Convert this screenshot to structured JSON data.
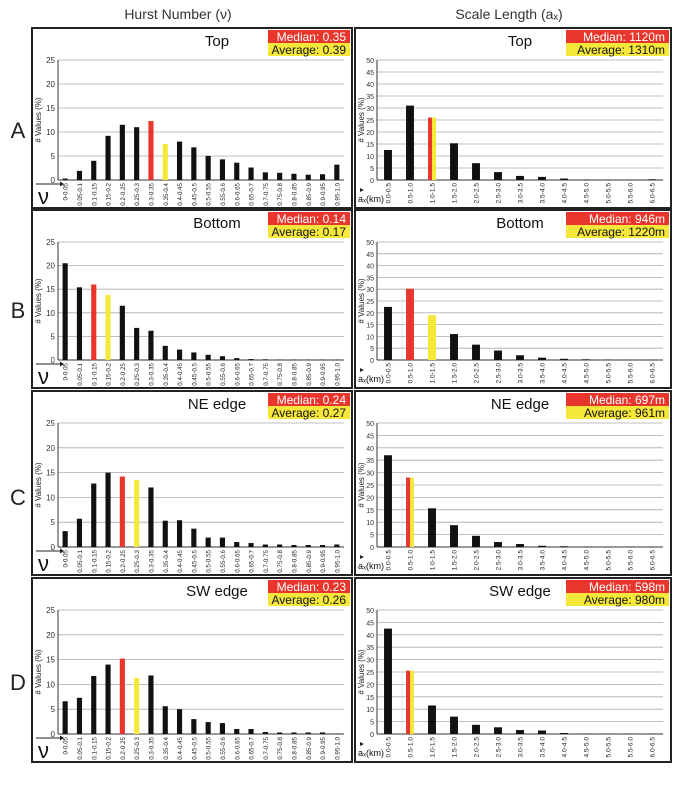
{
  "figure": {
    "column_titles": [
      "Hurst Number (ν)",
      "Scale Length (aₓ)"
    ],
    "row_labels": [
      "A",
      "B",
      "C",
      "D"
    ],
    "colors": {
      "median": "#e8362c",
      "average": "#f5e83a",
      "bar": "#111111",
      "grid": "#aaaaaa"
    },
    "hurst_x_symbol": "ν",
    "scale_x_symbol": "aₓ(km)"
  },
  "chart_data": [
    {
      "type": "bar",
      "title": "Top",
      "ylabel": "# Values (%)",
      "ylim": [
        0,
        25
      ],
      "yticks": [
        0,
        5,
        10,
        15,
        20,
        25
      ],
      "grid": true,
      "median_label": "Median: 0.35",
      "average_label": "Average: 0.39",
      "categories": [
        "0-0.05",
        "0.05-0.1",
        "0.1-0.15",
        "0.15-0.2",
        "0.2-0.25",
        "0.25-0.3",
        "0.3-0.35",
        "0.35-0.4",
        "0.4-0.45",
        "0.45-0.5",
        "0.5-0.55",
        "0.55-0.6",
        "0.6-0.65",
        "0.65-0.7",
        "0.7-0.75",
        "0.75-0.8",
        "0.8-0.85",
        "0.85-0.9",
        "0.9-0.95",
        "0.95-1.0"
      ],
      "values": [
        0.3,
        1.9,
        4.0,
        9.2,
        11.5,
        11.0,
        12.3,
        7.5,
        8.0,
        6.8,
        5.0,
        4.3,
        3.6,
        2.6,
        1.6,
        1.5,
        1.3,
        1.1,
        1.2,
        3.2
      ],
      "median_index": 6,
      "average_index": 7,
      "split_index": -1
    },
    {
      "type": "bar",
      "title": "Top",
      "ylabel": "# Values (%)",
      "ylim": [
        0,
        50
      ],
      "yticks": [
        0,
        5,
        10,
        15,
        20,
        25,
        30,
        35,
        40,
        45,
        50
      ],
      "grid": true,
      "median_label": "Median: 1120m",
      "average_label": "Average: 1310m",
      "categories": [
        "0.0-0.5",
        "0.5-1.0",
        "1.0-1.5",
        "1.5-2.0",
        "2.0-2.5",
        "2.5-3.0",
        "3.0-3.5",
        "3.5-4.0",
        "4.0-4.5",
        "4.5-5.0",
        "5.0-5.5",
        "5.5-6.0",
        "6.0-6.5"
      ],
      "values": [
        12.5,
        31.0,
        26.0,
        15.3,
        7.0,
        3.3,
        1.7,
        1.3,
        0.6,
        0.2,
        0.1,
        0.1,
        0.3
      ],
      "median_index": -1,
      "average_index": -1,
      "split_index": 2
    },
    {
      "type": "bar",
      "title": "Bottom",
      "ylabel": "# Values (%)",
      "ylim": [
        0,
        25
      ],
      "yticks": [
        0,
        5,
        10,
        15,
        20,
        25
      ],
      "grid": true,
      "median_label": "Median: 0.14",
      "average_label": "Average: 0.17",
      "categories": [
        "0-0.05",
        "0.05-0.1",
        "0.1-0.15",
        "0.15-0.2",
        "0.2-0.25",
        "0.25-0.3",
        "0.3-0.35",
        "0.35-0.4",
        "0.4-0.45",
        "0.45-0.5",
        "0.5-0.55",
        "0.55-0.6",
        "0.6-0.65",
        "0.65-0.7",
        "0.7-0.75",
        "0.75-0.8",
        "0.8-0.85",
        "0.85-0.9",
        "0.9-0.95",
        "0.95-1.0"
      ],
      "values": [
        20.5,
        15.4,
        16.0,
        13.8,
        11.5,
        6.8,
        6.2,
        3.0,
        2.2,
        1.6,
        1.1,
        0.8,
        0.4,
        0.2,
        0.15,
        0.1,
        0.1,
        0.1,
        0.1,
        0.1
      ],
      "median_index": 2,
      "average_index": 3,
      "split_index": -1
    },
    {
      "type": "bar",
      "title": "Bottom",
      "ylabel": "# Values (%)",
      "ylim": [
        0,
        50
      ],
      "yticks": [
        0,
        5,
        10,
        15,
        20,
        25,
        30,
        35,
        40,
        45,
        50
      ],
      "grid": true,
      "median_label": "Median: 946m",
      "average_label": "Average: 1220m",
      "categories": [
        "0.0-0.5",
        "0.5-1.0",
        "1.0-1.5",
        "1.5-2.0",
        "2.0-2.5",
        "2.5-3.0",
        "3.0-3.5",
        "3.5-4.0",
        "4.0-4.5",
        "4.5-5.0",
        "5.0-5.5",
        "5.5-6.0",
        "6.0-6.5"
      ],
      "values": [
        22.5,
        30.2,
        19.0,
        11.0,
        6.5,
        4.0,
        2.0,
        1.0,
        0.5,
        0.3,
        0.2,
        0.1,
        0.1
      ],
      "median_index": 1,
      "average_index": 2,
      "split_index": -1
    },
    {
      "type": "bar",
      "title": "NE edge",
      "ylabel": "# Values (%)",
      "ylim": [
        0,
        25
      ],
      "yticks": [
        0,
        5,
        10,
        15,
        20,
        25
      ],
      "grid": true,
      "median_label": "Median: 0.24",
      "average_label": "Average: 0.27",
      "categories": [
        "0-0.05",
        "0.05-0.1",
        "0.1-0.15",
        "0.15-0.2",
        "0.2-0.25",
        "0.25-0.3",
        "0.3-0.35",
        "0.35-0.4",
        "0.4-0.45",
        "0.45-0.5",
        "0.5-0.55",
        "0.55-0.6",
        "0.6-0.65",
        "0.65-0.7",
        "0.7-0.75",
        "0.75-0.8",
        "0.8-0.85",
        "0.85-0.9",
        "0.9-0.95",
        "0.95-1.0"
      ],
      "values": [
        3.2,
        5.7,
        12.8,
        15.0,
        14.2,
        13.5,
        12.0,
        5.3,
        5.4,
        3.7,
        1.9,
        1.9,
        1.0,
        0.8,
        0.5,
        0.5,
        0.4,
        0.4,
        0.4,
        0.5
      ],
      "median_index": 4,
      "average_index": 5,
      "split_index": -1
    },
    {
      "type": "bar",
      "title": "NE edge",
      "ylabel": "# Values (%)",
      "ylim": [
        0,
        50
      ],
      "yticks": [
        0,
        5,
        10,
        15,
        20,
        25,
        30,
        35,
        40,
        45,
        50
      ],
      "grid": true,
      "median_label": "Median: 697m",
      "average_label": "Average: 961m",
      "categories": [
        "0.0-0.5",
        "0.5-1.0",
        "1.0-1.5",
        "1.5-2.0",
        "2.0-2.5",
        "2.5-3.0",
        "3.0-3.5",
        "3.5-4.0",
        "4.0-4.5",
        "4.5-5.0",
        "5.0-5.5",
        "5.5-6.0",
        "6.0-6.5"
      ],
      "values": [
        37.0,
        28.0,
        15.6,
        8.8,
        4.5,
        2.0,
        1.2,
        0.5,
        0.3,
        0.1,
        0.1,
        0.1,
        0.1
      ],
      "median_index": -1,
      "average_index": -1,
      "split_index": 1
    },
    {
      "type": "bar",
      "title": "SW edge",
      "ylabel": "# Values (%)",
      "ylim": [
        0,
        25
      ],
      "yticks": [
        0,
        5,
        10,
        15,
        20,
        25
      ],
      "grid": true,
      "median_label": "Median: 0.23",
      "average_label": "Average: 0.26",
      "categories": [
        "0-0.05",
        "0.05-0.1",
        "0.1-0.15",
        "0.15-0.2",
        "0.2-0.25",
        "0.25-0.3",
        "0.3-0.35",
        "0.35-0.4",
        "0.4-0.45",
        "0.45-0.5",
        "0.5-0.55",
        "0.55-0.6",
        "0.6-0.65",
        "0.65-0.7",
        "0.7-0.75",
        "0.75-0.8",
        "0.8-0.85",
        "0.85-0.9",
        "0.9-0.95",
        "0.95-1.0"
      ],
      "values": [
        6.6,
        7.3,
        11.7,
        14.0,
        15.2,
        11.3,
        11.8,
        5.6,
        5.0,
        3.0,
        2.4,
        2.2,
        1.0,
        1.0,
        0.4,
        0.3,
        0.3,
        0.3,
        0.3,
        0.1
      ],
      "median_index": 4,
      "average_index": 5,
      "split_index": -1
    },
    {
      "type": "bar",
      "title": "SW edge",
      "ylabel": "# Values (%)",
      "ylim": [
        0,
        50
      ],
      "yticks": [
        0,
        5,
        10,
        15,
        20,
        25,
        30,
        35,
        40,
        45,
        50
      ],
      "grid": true,
      "median_label": "Median: 598m",
      "average_label": "Average: 980m",
      "categories": [
        "0.0-0.5",
        "0.5-1.0",
        "1.0-1.5",
        "1.5-2.0",
        "2.0-2.5",
        "2.5-3.0",
        "3.0-3.5",
        "3.5-4.0",
        "4.0-4.5",
        "4.5-5.0",
        "5.0-5.5",
        "5.5-6.0",
        "6.0-6.5"
      ],
      "values": [
        42.5,
        25.5,
        11.5,
        7.0,
        3.7,
        2.7,
        1.6,
        1.4,
        0.4,
        0.2,
        0.1,
        0.1,
        0.1
      ],
      "median_index": -1,
      "average_index": -1,
      "split_index": 1
    }
  ]
}
